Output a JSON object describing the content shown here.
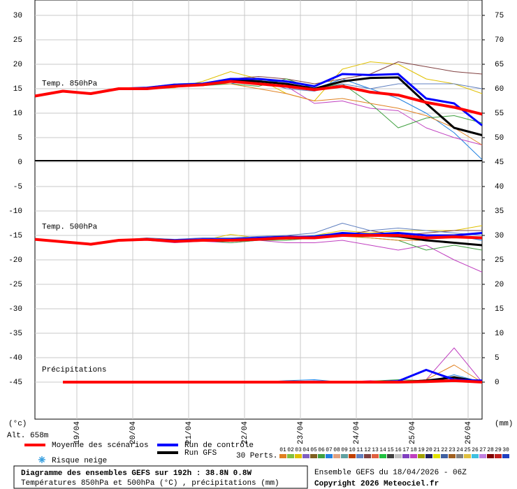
{
  "chart_data": {
    "type": "line",
    "y_unit": "(°c)",
    "y2_unit": "(mm)",
    "altitude": "Alt. 658m",
    "x": [
      0,
      12,
      24,
      36,
      48,
      60,
      72,
      84,
      96,
      108,
      120,
      132,
      144,
      156,
      168,
      180,
      192
    ],
    "xlim": [
      0,
      192
    ],
    "xticks": [
      {
        "value": 18,
        "label": "19/04"
      },
      {
        "value": 42,
        "label": "20/04"
      },
      {
        "value": 66,
        "label": "21/04"
      },
      {
        "value": 90,
        "label": "22/04"
      },
      {
        "value": 114,
        "label": "23/04"
      },
      {
        "value": 138,
        "label": "24/04"
      },
      {
        "value": 162,
        "label": "25/04"
      },
      {
        "value": 186,
        "label": "26/04"
      }
    ],
    "ylim": [
      -52.571,
      33.143
    ],
    "yticks": [
      30,
      25,
      20,
      15,
      10,
      5,
      0,
      -5,
      -10,
      -15,
      -20,
      -25,
      -30,
      -35,
      -40,
      -45
    ],
    "y2lim": [
      -7.571,
      78.143
    ],
    "y2ticks": [
      75,
      70,
      65,
      60,
      55,
      50,
      45,
      40,
      35,
      30,
      25,
      20,
      15,
      10,
      5,
      0
    ],
    "grid": true,
    "legend": [
      {
        "name": "Moyenne des scénarios",
        "color": "#ff0000"
      },
      {
        "name": "Run de contrôle",
        "color": "#0000ff"
      },
      {
        "name": "Run GFS",
        "color": "#000000"
      }
    ],
    "snow_label": "Risque neige",
    "members_label": "30 Perts.",
    "members": [
      {
        "name": "01",
        "color": "#e08020"
      },
      {
        "name": "02",
        "color": "#80c040"
      },
      {
        "name": "03",
        "color": "#e0c000"
      },
      {
        "name": "04",
        "color": "#8060c0"
      },
      {
        "name": "05",
        "color": "#806020"
      },
      {
        "name": "06",
        "color": "#40a040"
      },
      {
        "name": "07",
        "color": "#2080e0"
      },
      {
        "name": "08",
        "color": "#e0a080"
      },
      {
        "name": "09",
        "color": "#60a0a0"
      },
      {
        "name": "10",
        "color": "#c04000"
      },
      {
        "name": "11",
        "color": "#6080c0"
      },
      {
        "name": "12",
        "color": "#804040"
      },
      {
        "name": "13",
        "color": "#e06040"
      },
      {
        "name": "14",
        "color": "#20c040"
      },
      {
        "name": "15",
        "color": "#404040"
      },
      {
        "name": "16",
        "color": "#c0c0c0"
      },
      {
        "name": "17",
        "color": "#8040c0"
      },
      {
        "name": "18",
        "color": "#c040c0"
      },
      {
        "name": "19",
        "color": "#a0a000"
      },
      {
        "name": "20",
        "color": "#202060"
      },
      {
        "name": "21",
        "color": "#e0e000"
      },
      {
        "name": "22",
        "color": "#4060a0"
      },
      {
        "name": "23",
        "color": "#a06020"
      },
      {
        "name": "24",
        "color": "#808080"
      },
      {
        "name": "25",
        "color": "#e0c040"
      },
      {
        "name": "26",
        "color": "#40c0e0"
      },
      {
        "name": "27",
        "color": "#c080e0"
      },
      {
        "name": "28",
        "color": "#800000"
      },
      {
        "name": "29",
        "color": "#c02020"
      },
      {
        "name": "30",
        "color": "#2040c0"
      }
    ],
    "panels": [
      {
        "label": "Temp. 850hPa",
        "axis": "y",
        "perturbations": [
          {
            "color": "#e0c000",
            "values": [
              13.5,
              14.5,
              14,
              14.8,
              15,
              15.2,
              16.5,
              18.5,
              17,
              14,
              12.5,
              19,
              20.5,
              20,
              17,
              16,
              14
            ]
          },
          {
            "color": "#2080e0",
            "values": [
              13.5,
              14.5,
              14,
              15.2,
              15,
              15.6,
              15.8,
              16,
              17,
              16,
              15,
              17,
              15,
              13,
              10,
              6,
              0.5
            ]
          },
          {
            "color": "#c040c0",
            "values": [
              13.5,
              14.5,
              14,
              15,
              14.8,
              15.5,
              15.8,
              16.5,
              16,
              15.5,
              12,
              12.5,
              11,
              10.5,
              7,
              5,
              3.5
            ]
          },
          {
            "color": "#804040",
            "values": [
              13.5,
              14.5,
              14,
              15,
              15,
              16,
              16,
              17,
              17.5,
              17,
              16,
              17,
              18,
              20.5,
              19.5,
              18.5,
              18
            ]
          },
          {
            "color": "#40a040",
            "values": [
              13.5,
              14.5,
              14,
              15,
              15.2,
              15.8,
              15.6,
              16,
              15.5,
              17,
              15,
              16,
              12,
              7,
              9,
              9.5,
              8
            ]
          },
          {
            "color": "#e08020",
            "values": [
              13.5,
              14.5,
              14,
              15,
              15,
              15.5,
              16,
              16,
              15,
              14,
              12.5,
              13,
              12,
              11,
              9.5,
              7,
              3.5
            ]
          },
          {
            "color": "#6080c0",
            "values": [
              13.5,
              14.5,
              13.8,
              15,
              15.3,
              16,
              16.2,
              17,
              16.8,
              15,
              14.5,
              16,
              15,
              16,
              16,
              16,
              15
            ]
          }
        ],
        "main": [
          {
            "values": [
              13.5,
              14.5,
              14,
              15,
              15,
              15.5,
              15.8,
              16.5,
              16,
              15.5,
              14.8,
              15.5,
              14.3,
              13.7,
              12.2,
              11.2,
              9.8
            ]
          },
          {
            "values": [
              13.5,
              14.5,
              14,
              15,
              15.2,
              15.8,
              16,
              17,
              17,
              16.5,
              15.5,
              18,
              17.8,
              18,
              13,
              12,
              7.5
            ]
          },
          {
            "values": [
              13.5,
              14.5,
              14,
              15,
              15,
              15.7,
              16,
              16.8,
              16.5,
              16,
              15,
              16.5,
              17.2,
              17.3,
              12,
              7,
              5.5
            ]
          }
        ]
      },
      {
        "label": "Temp. 500hPa",
        "axis": "y",
        "perturbations": [
          {
            "color": "#e0c000",
            "values": [
              -15.8,
              -16.3,
              -16.8,
              -16,
              -15.8,
              -16,
              -16,
              -14.8,
              -15.5,
              -15.5,
              -15,
              -14,
              -14.5,
              -14,
              -14,
              -14,
              -13
            ]
          },
          {
            "color": "#2080e0",
            "values": [
              -15.8,
              -16.3,
              -16.8,
              -16,
              -15.8,
              -16,
              -15.8,
              -16,
              -15.5,
              -15.5,
              -15,
              -14.5,
              -15,
              -14.5,
              -15,
              -15,
              -16
            ]
          },
          {
            "color": "#c040c0",
            "values": [
              -15.8,
              -16.3,
              -16.8,
              -16.2,
              -16,
              -16.5,
              -16.2,
              -16.5,
              -16,
              -16.5,
              -16.5,
              -16,
              -17,
              -18,
              -17,
              -20,
              -22.5
            ]
          },
          {
            "color": "#804040",
            "values": [
              -15.8,
              -16.3,
              -16.8,
              -16,
              -15.8,
              -16,
              -16,
              -16,
              -15.5,
              -15,
              -15.5,
              -15,
              -14,
              -15,
              -14.5,
              -14,
              -14
            ]
          },
          {
            "color": "#40a040",
            "values": [
              -15.8,
              -16.3,
              -16.8,
              -16,
              -15.8,
              -16,
              -16,
              -16.5,
              -16,
              -16,
              -15.5,
              -15,
              -15.5,
              -16,
              -18,
              -17,
              -18
            ]
          },
          {
            "color": "#e08020",
            "values": [
              -15.8,
              -16.3,
              -16.8,
              -16,
              -15.8,
              -16,
              -16,
              -16.2,
              -15.8,
              -15.8,
              -15.5,
              -15.2,
              -15.5,
              -16,
              -16,
              -16.5,
              -17
            ]
          },
          {
            "color": "#6080c0",
            "values": [
              -15.8,
              -16.3,
              -16.8,
              -16,
              -15.5,
              -15.8,
              -15.5,
              -15.5,
              -15.2,
              -15,
              -14.5,
              -12.5,
              -14,
              -13.5,
              -14,
              -14.5,
              -15
            ]
          }
        ],
        "main": [
          {
            "values": [
              -15.8,
              -16.3,
              -16.8,
              -16,
              -15.8,
              -16.2,
              -16,
              -16,
              -15.8,
              -15.5,
              -15.5,
              -15,
              -15,
              -15,
              -15.5,
              -15.3,
              -15.5
            ]
          },
          {
            "values": [
              -15.8,
              -16.3,
              -16.8,
              -16,
              -15.8,
              -16,
              -15.8,
              -15.8,
              -15.5,
              -15.3,
              -15.3,
              -14.5,
              -14.8,
              -14.5,
              -15,
              -15,
              -14.5
            ]
          },
          {
            "values": [
              -15.8,
              -16.3,
              -16.8,
              -16,
              -15.8,
              -16,
              -16,
              -16,
              -15.8,
              -15.5,
              -15.3,
              -14.8,
              -15,
              -15.2,
              -16,
              -16.5,
              -17
            ]
          }
        ]
      },
      {
        "label": "Précipitations",
        "axis": "y2",
        "perturbations": [
          {
            "color": "#c040c0",
            "values": [
              null,
              0,
              0,
              0,
              0,
              0,
              0,
              0,
              0,
              0,
              0,
              0,
              0.3,
              0,
              0.5,
              7,
              0
            ]
          },
          {
            "color": "#e08020",
            "values": [
              null,
              0,
              0,
              0,
              0,
              0,
              0,
              0,
              0,
              0,
              0.2,
              0,
              0,
              0,
              0.5,
              3.5,
              0
            ]
          },
          {
            "color": "#2080e0",
            "values": [
              null,
              0,
              0,
              0,
              0,
              0,
              0,
              0.1,
              0,
              0.3,
              0.5,
              0,
              0,
              0.3,
              0,
              1.5,
              0
            ]
          },
          {
            "color": "#40a040",
            "values": [
              null,
              0,
              0,
              0,
              0,
              0,
              0,
              0.2,
              0,
              0,
              0,
              0,
              0.2,
              0.5,
              0.3,
              0.8,
              0
            ]
          }
        ],
        "main": [
          {
            "values": [
              null,
              0,
              0,
              0,
              0,
              0,
              0,
              0,
              0,
              0,
              0,
              0,
              0,
              0,
              0.1,
              0.3,
              0
            ]
          },
          {
            "values": [
              null,
              0,
              0,
              0,
              0,
              0,
              0,
              0,
              0,
              0,
              0.1,
              0,
              0,
              0.2,
              2.5,
              0.5,
              0.3
            ]
          },
          {
            "values": [
              null,
              0,
              0,
              0,
              0,
              0,
              0,
              0,
              0,
              0,
              0,
              0,
              0,
              0,
              0.3,
              1,
              0
            ]
          }
        ]
      }
    ],
    "footer_title": "Diagramme des ensembles GEFS sur 192h : 38.8N 0.8W",
    "footer_subtitle": "Températures 850hPa et 500hPa (°C) , précipitations (mm)",
    "run_label": "Ensemble GEFS du 18/04/2026 - 06Z",
    "copyright": "Copyright 2026 Meteociel.fr"
  }
}
